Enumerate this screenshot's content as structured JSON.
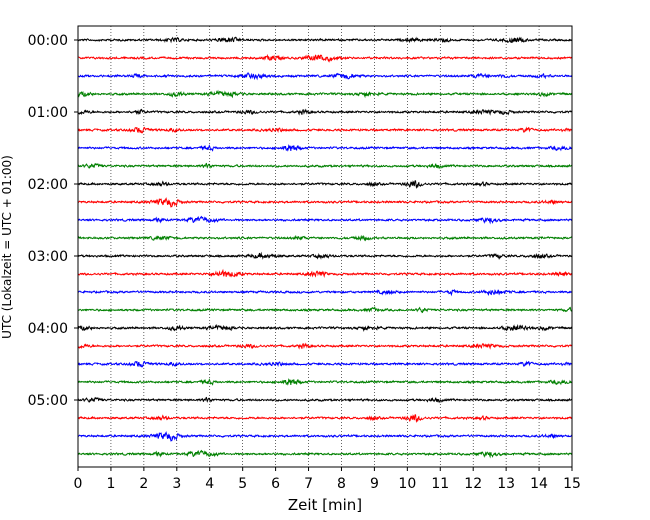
{
  "chart_data": {
    "type": "line",
    "title": "",
    "xlabel": "Zeit  [min]",
    "ylabel": "UTC (Lokalzeit = UTC + 01:00)",
    "xlim": [
      0,
      15
    ],
    "x_ticks": [
      "0",
      "1",
      "2",
      "3",
      "4",
      "5",
      "6",
      "7",
      "8",
      "9",
      "10",
      "11",
      "12",
      "13",
      "14",
      "15"
    ],
    "y_ticks": [
      "00:00",
      "01:00",
      "02:00",
      "03:00",
      "04:00",
      "05:00"
    ],
    "grid": "vertical dotted",
    "trace_colors": [
      "#000000",
      "#ff0000",
      "#0000ff",
      "#008000"
    ],
    "trace_count": 24,
    "trace_minutes_per_line": 15
  }
}
